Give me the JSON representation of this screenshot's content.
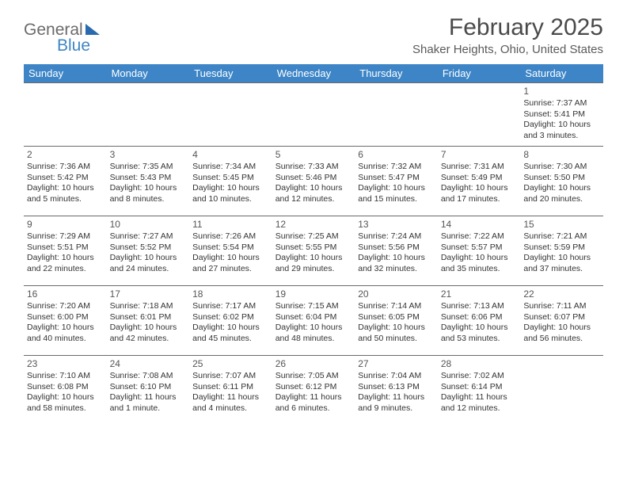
{
  "logo": {
    "text1": "General",
    "text2": "Blue",
    "text1_color": "#6b6b6b",
    "text2_color": "#3d85c6"
  },
  "title": "February 2025",
  "location": "Shaker Heights, Ohio, United States",
  "day_headers": [
    "Sunday",
    "Monday",
    "Tuesday",
    "Wednesday",
    "Thursday",
    "Friday",
    "Saturday"
  ],
  "header_bg": "#3d85c6",
  "header_fg": "#ffffff",
  "border_color": "#6a6a6a",
  "text_color": "#333333",
  "font_family": "Arial",
  "cell_fontsize": 10.5,
  "weeks": [
    [
      null,
      null,
      null,
      null,
      null,
      null,
      {
        "n": "1",
        "sr": "Sunrise: 7:37 AM",
        "ss": "Sunset: 5:41 PM",
        "d1": "Daylight: 10 hours",
        "d2": "and 3 minutes."
      }
    ],
    [
      {
        "n": "2",
        "sr": "Sunrise: 7:36 AM",
        "ss": "Sunset: 5:42 PM",
        "d1": "Daylight: 10 hours",
        "d2": "and 5 minutes."
      },
      {
        "n": "3",
        "sr": "Sunrise: 7:35 AM",
        "ss": "Sunset: 5:43 PM",
        "d1": "Daylight: 10 hours",
        "d2": "and 8 minutes."
      },
      {
        "n": "4",
        "sr": "Sunrise: 7:34 AM",
        "ss": "Sunset: 5:45 PM",
        "d1": "Daylight: 10 hours",
        "d2": "and 10 minutes."
      },
      {
        "n": "5",
        "sr": "Sunrise: 7:33 AM",
        "ss": "Sunset: 5:46 PM",
        "d1": "Daylight: 10 hours",
        "d2": "and 12 minutes."
      },
      {
        "n": "6",
        "sr": "Sunrise: 7:32 AM",
        "ss": "Sunset: 5:47 PM",
        "d1": "Daylight: 10 hours",
        "d2": "and 15 minutes."
      },
      {
        "n": "7",
        "sr": "Sunrise: 7:31 AM",
        "ss": "Sunset: 5:49 PM",
        "d1": "Daylight: 10 hours",
        "d2": "and 17 minutes."
      },
      {
        "n": "8",
        "sr": "Sunrise: 7:30 AM",
        "ss": "Sunset: 5:50 PM",
        "d1": "Daylight: 10 hours",
        "d2": "and 20 minutes."
      }
    ],
    [
      {
        "n": "9",
        "sr": "Sunrise: 7:29 AM",
        "ss": "Sunset: 5:51 PM",
        "d1": "Daylight: 10 hours",
        "d2": "and 22 minutes."
      },
      {
        "n": "10",
        "sr": "Sunrise: 7:27 AM",
        "ss": "Sunset: 5:52 PM",
        "d1": "Daylight: 10 hours",
        "d2": "and 24 minutes."
      },
      {
        "n": "11",
        "sr": "Sunrise: 7:26 AM",
        "ss": "Sunset: 5:54 PM",
        "d1": "Daylight: 10 hours",
        "d2": "and 27 minutes."
      },
      {
        "n": "12",
        "sr": "Sunrise: 7:25 AM",
        "ss": "Sunset: 5:55 PM",
        "d1": "Daylight: 10 hours",
        "d2": "and 29 minutes."
      },
      {
        "n": "13",
        "sr": "Sunrise: 7:24 AM",
        "ss": "Sunset: 5:56 PM",
        "d1": "Daylight: 10 hours",
        "d2": "and 32 minutes."
      },
      {
        "n": "14",
        "sr": "Sunrise: 7:22 AM",
        "ss": "Sunset: 5:57 PM",
        "d1": "Daylight: 10 hours",
        "d2": "and 35 minutes."
      },
      {
        "n": "15",
        "sr": "Sunrise: 7:21 AM",
        "ss": "Sunset: 5:59 PM",
        "d1": "Daylight: 10 hours",
        "d2": "and 37 minutes."
      }
    ],
    [
      {
        "n": "16",
        "sr": "Sunrise: 7:20 AM",
        "ss": "Sunset: 6:00 PM",
        "d1": "Daylight: 10 hours",
        "d2": "and 40 minutes."
      },
      {
        "n": "17",
        "sr": "Sunrise: 7:18 AM",
        "ss": "Sunset: 6:01 PM",
        "d1": "Daylight: 10 hours",
        "d2": "and 42 minutes."
      },
      {
        "n": "18",
        "sr": "Sunrise: 7:17 AM",
        "ss": "Sunset: 6:02 PM",
        "d1": "Daylight: 10 hours",
        "d2": "and 45 minutes."
      },
      {
        "n": "19",
        "sr": "Sunrise: 7:15 AM",
        "ss": "Sunset: 6:04 PM",
        "d1": "Daylight: 10 hours",
        "d2": "and 48 minutes."
      },
      {
        "n": "20",
        "sr": "Sunrise: 7:14 AM",
        "ss": "Sunset: 6:05 PM",
        "d1": "Daylight: 10 hours",
        "d2": "and 50 minutes."
      },
      {
        "n": "21",
        "sr": "Sunrise: 7:13 AM",
        "ss": "Sunset: 6:06 PM",
        "d1": "Daylight: 10 hours",
        "d2": "and 53 minutes."
      },
      {
        "n": "22",
        "sr": "Sunrise: 7:11 AM",
        "ss": "Sunset: 6:07 PM",
        "d1": "Daylight: 10 hours",
        "d2": "and 56 minutes."
      }
    ],
    [
      {
        "n": "23",
        "sr": "Sunrise: 7:10 AM",
        "ss": "Sunset: 6:08 PM",
        "d1": "Daylight: 10 hours",
        "d2": "and 58 minutes."
      },
      {
        "n": "24",
        "sr": "Sunrise: 7:08 AM",
        "ss": "Sunset: 6:10 PM",
        "d1": "Daylight: 11 hours",
        "d2": "and 1 minute."
      },
      {
        "n": "25",
        "sr": "Sunrise: 7:07 AM",
        "ss": "Sunset: 6:11 PM",
        "d1": "Daylight: 11 hours",
        "d2": "and 4 minutes."
      },
      {
        "n": "26",
        "sr": "Sunrise: 7:05 AM",
        "ss": "Sunset: 6:12 PM",
        "d1": "Daylight: 11 hours",
        "d2": "and 6 minutes."
      },
      {
        "n": "27",
        "sr": "Sunrise: 7:04 AM",
        "ss": "Sunset: 6:13 PM",
        "d1": "Daylight: 11 hours",
        "d2": "and 9 minutes."
      },
      {
        "n": "28",
        "sr": "Sunrise: 7:02 AM",
        "ss": "Sunset: 6:14 PM",
        "d1": "Daylight: 11 hours",
        "d2": "and 12 minutes."
      },
      null
    ]
  ]
}
